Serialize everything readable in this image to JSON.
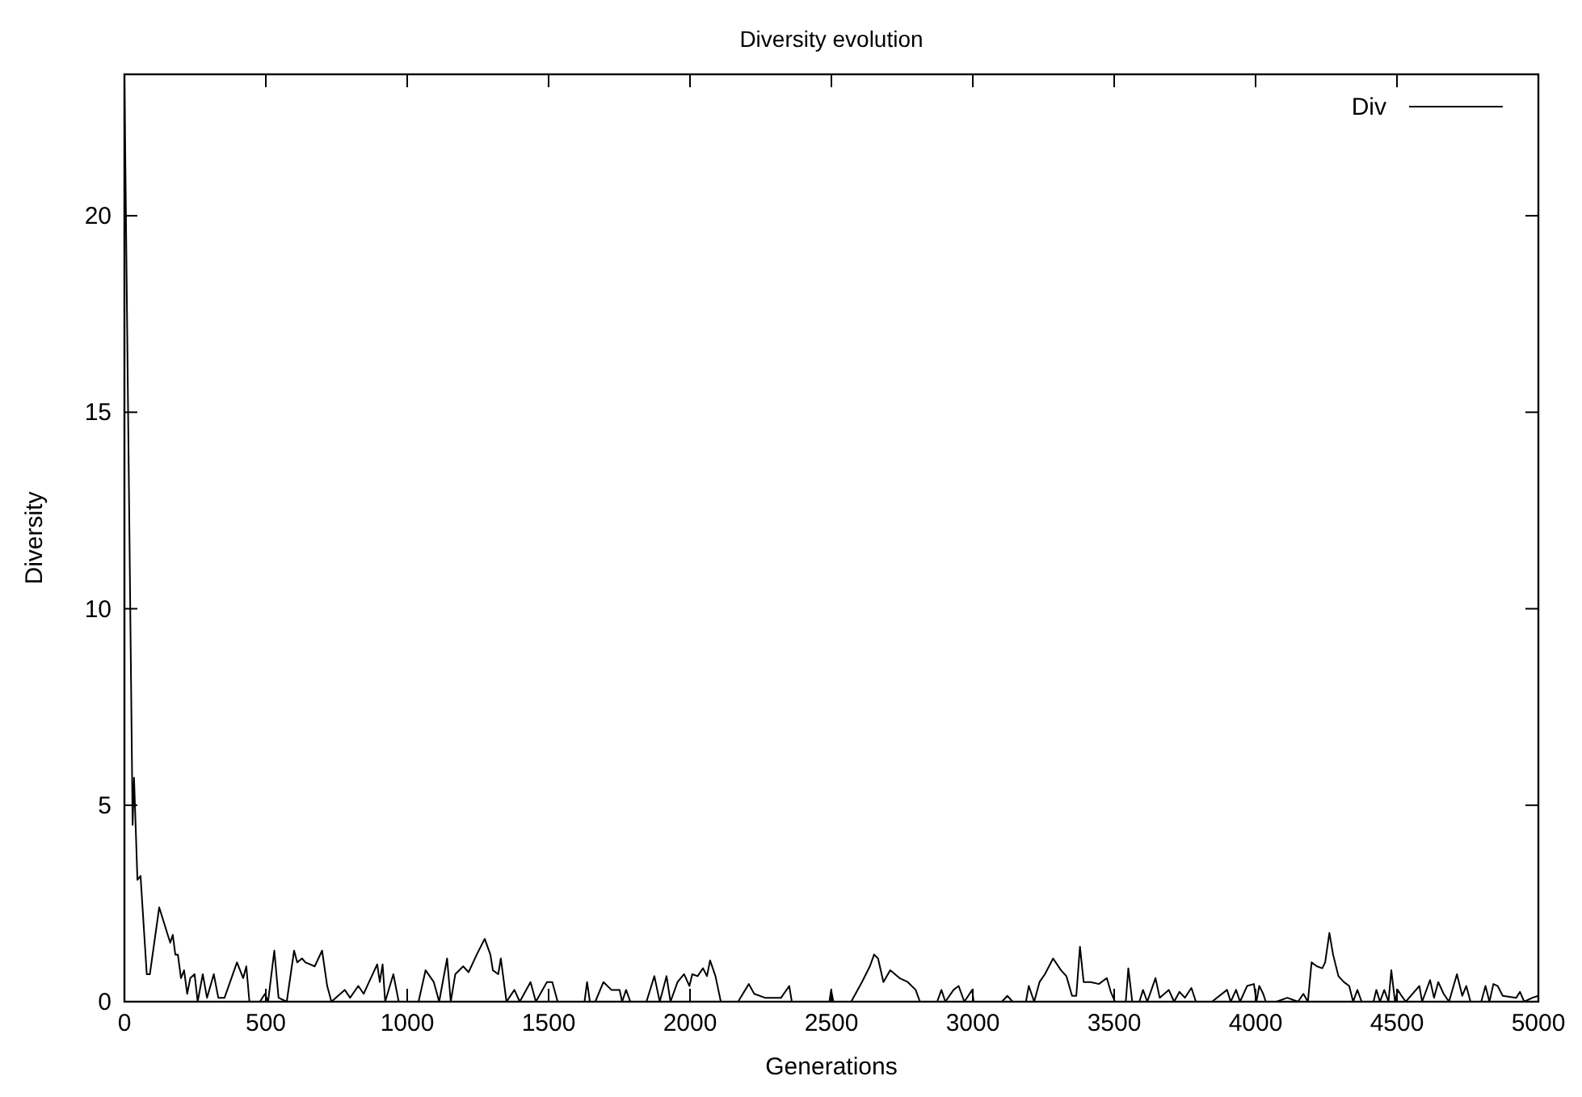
{
  "chart_data": {
    "type": "line",
    "title": "Diversity evolution",
    "xlabel": "Generations",
    "ylabel": "Diversity",
    "xlim": [
      0,
      5000
    ],
    "ylim": [
      0,
      23.6
    ],
    "xticks": [
      0,
      500,
      1000,
      1500,
      2000,
      2500,
      3000,
      3500,
      4000,
      4500,
      5000
    ],
    "yticks": [
      0,
      5,
      10,
      15,
      20
    ],
    "grid": false,
    "legend": "top right",
    "marker": "none",
    "line_style": "solid",
    "series": [
      {
        "name": "Div",
        "color": "#000000",
        "x": [
          0,
          29,
          34,
          46,
          57,
          79,
          90,
          123,
          149,
          162,
          171,
          180,
          189,
          200,
          211,
          222,
          233,
          248,
          259,
          277,
          292,
          316,
          332,
          354,
          398,
          420,
          431,
          442,
          479,
          497,
          508,
          530,
          545,
          574,
          600,
          611,
          628,
          640,
          673,
          699,
          717,
          732,
          779,
          798,
          827,
          846,
          865,
          894,
          903,
          913,
          922,
          951,
          970,
          1040,
          1065,
          1094,
          1113,
          1141,
          1154,
          1170,
          1198,
          1217,
          1246,
          1274,
          1294,
          1303,
          1322,
          1331,
          1351,
          1379,
          1398,
          1436,
          1455,
          1494,
          1513,
          1532,
          1627,
          1636,
          1646,
          1665,
          1694,
          1722,
          1751,
          1760,
          1774,
          1789,
          1846,
          1874,
          1893,
          1917,
          1931,
          1956,
          1979,
          1998,
          2008,
          2027,
          2046,
          2060,
          2071,
          2090,
          2109,
          2170,
          2208,
          2227,
          2265,
          2322,
          2351,
          2360,
          2436,
          2493,
          2499,
          2507,
          2570,
          2608,
          2636,
          2651,
          2665,
          2684,
          2708,
          2741,
          2770,
          2798,
          2813,
          2874,
          2889,
          2903,
          2932,
          2950,
          2970,
          2998,
          3003,
          3103,
          3122,
          3141,
          3188,
          3198,
          3217,
          3236,
          3255,
          3284,
          3312,
          3331,
          3351,
          3366,
          3379,
          3392,
          3417,
          3446,
          3474,
          3488,
          3503,
          3541,
          3550,
          3564,
          3589,
          3602,
          3617,
          3646,
          3661,
          3693,
          3712,
          3731,
          3750,
          3773,
          3789,
          3846,
          3899,
          3912,
          3931,
          3945,
          3970,
          3994,
          4003,
          4013,
          4027,
          4036,
          4074,
          4112,
          4150,
          4169,
          4185,
          4198,
          4217,
          4236,
          4246,
          4261,
          4274,
          4293,
          4312,
          4331,
          4345,
          4360,
          4375,
          4417,
          4427,
          4440,
          4455,
          4470,
          4480,
          4493,
          4503,
          4516,
          4531,
          4579,
          4589,
          4617,
          4631,
          4646,
          4665,
          4684,
          4712,
          4731,
          4745,
          4760,
          4798,
          4813,
          4827,
          4841,
          4856,
          4874,
          4922,
          4935,
          4950,
          4979,
          5000
        ],
        "values": [
          23.5,
          4.5,
          5.7,
          3.1,
          3.2,
          0.7,
          0.7,
          2.4,
          1.8,
          1.5,
          1.7,
          1.2,
          1.2,
          0.6,
          0.8,
          0.2,
          0.6,
          0.7,
          0,
          0.7,
          0.1,
          0.7,
          0.1,
          0.1,
          1.0,
          0.6,
          0.9,
          0,
          0,
          0.2,
          0,
          1.3,
          0.1,
          0,
          1.3,
          1.0,
          1.1,
          1.0,
          0.9,
          1.3,
          0.4,
          0,
          0.3,
          0.1,
          0.4,
          0.2,
          0.5,
          0.95,
          0.5,
          0.95,
          0,
          0.7,
          0,
          0,
          0.8,
          0.5,
          0,
          1.1,
          0,
          0.7,
          0.9,
          0.75,
          1.2,
          1.6,
          1.2,
          0.8,
          0.7,
          1.1,
          0,
          0.3,
          0,
          0.5,
          0,
          0.5,
          0.5,
          0,
          0,
          0.5,
          0,
          0,
          0.5,
          0.3,
          0.3,
          0,
          0.3,
          0,
          0,
          0.65,
          0,
          0.65,
          0,
          0.5,
          0.7,
          0.4,
          0.7,
          0.65,
          0.85,
          0.65,
          1.05,
          0.65,
          0,
          0,
          0.45,
          0.2,
          0.1,
          0.1,
          0.4,
          0,
          0,
          0,
          0.3,
          0,
          0,
          0.5,
          0.9,
          1.2,
          1.1,
          0.5,
          0.8,
          0.6,
          0.5,
          0.3,
          0,
          0,
          0.3,
          0,
          0.3,
          0.4,
          0,
          0.3,
          0,
          0,
          0.15,
          0,
          0,
          0.4,
          0,
          0.5,
          0.7,
          1.1,
          0.8,
          0.65,
          0.15,
          0.15,
          1.4,
          0.5,
          0.5,
          0.45,
          0.6,
          0.25,
          0,
          0,
          0.85,
          0,
          0,
          0.3,
          0,
          0.6,
          0.1,
          0.3,
          0,
          0.25,
          0.1,
          0.35,
          0,
          0,
          0.3,
          0,
          0.3,
          0,
          0.4,
          0.45,
          0,
          0.4,
          0.2,
          0,
          0,
          0.1,
          0,
          0.2,
          0,
          1.0,
          0.9,
          0.85,
          1.0,
          1.75,
          1.2,
          0.65,
          0.5,
          0.4,
          0,
          0.3,
          0,
          0,
          0.3,
          0,
          0.3,
          0,
          0.8,
          0,
          0.3,
          0.15,
          0,
          0.4,
          0,
          0.55,
          0.1,
          0.5,
          0.2,
          0,
          0.7,
          0.15,
          0.4,
          0,
          0,
          0.4,
          0,
          0.45,
          0.4,
          0.15,
          0.1,
          0.25,
          0,
          0.1,
          0.15
        ]
      }
    ]
  }
}
